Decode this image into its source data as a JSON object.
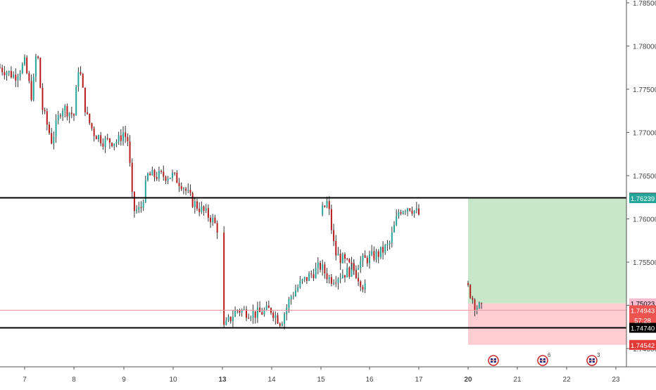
{
  "chart_data": {
    "type": "candlestick",
    "instrument": "",
    "y_axis": {
      "ticks": [
        "1.78500",
        "1.78000",
        "1.77500",
        "1.77000",
        "1.76500",
        "1.76000",
        "1.75500",
        "1.75000",
        "1.74500"
      ],
      "range": [
        1.7436,
        1.7862
      ]
    },
    "x_axis": {
      "ticks": [
        {
          "label": "7",
          "day": 7,
          "bold": false
        },
        {
          "label": "8",
          "day": 8,
          "bold": false
        },
        {
          "label": "9",
          "day": 9,
          "bold": false
        },
        {
          "label": "10",
          "day": 10,
          "bold": false
        },
        {
          "label": "13",
          "day": 13,
          "bold": true
        },
        {
          "label": "14",
          "day": 14,
          "bold": false
        },
        {
          "label": "15",
          "day": 15,
          "bold": false
        },
        {
          "label": "16",
          "day": 16,
          "bold": false
        },
        {
          "label": "17",
          "day": 17,
          "bold": false
        },
        {
          "label": "20",
          "day": 20,
          "bold": true
        },
        {
          "label": "21",
          "day": 21,
          "bold": false
        },
        {
          "label": "22",
          "day": 22,
          "bold": false
        },
        {
          "label": "23",
          "day": 23,
          "bold": false
        }
      ]
    },
    "price_path": [
      [
        6.5,
        1.7775
      ],
      [
        6.8,
        1.7765
      ],
      [
        7.0,
        1.778
      ],
      [
        7.15,
        1.774
      ],
      [
        7.25,
        1.78
      ],
      [
        7.35,
        1.773
      ],
      [
        7.55,
        1.769
      ],
      [
        7.75,
        1.773
      ],
      [
        8.0,
        1.772
      ],
      [
        8.1,
        1.778
      ],
      [
        8.25,
        1.772
      ],
      [
        8.4,
        1.77
      ],
      [
        8.6,
        1.769
      ],
      [
        8.9,
        1.769
      ],
      [
        9.0,
        1.77
      ],
      [
        9.1,
        1.769
      ],
      [
        9.2,
        1.761
      ],
      [
        9.35,
        1.761
      ],
      [
        9.5,
        1.765
      ],
      [
        9.8,
        1.765
      ],
      [
        10.0,
        1.765
      ],
      [
        10.2,
        1.764
      ],
      [
        10.4,
        1.762
      ],
      [
        10.6,
        1.761
      ],
      [
        10.8,
        1.76
      ],
      [
        11.0,
        1.758
      ],
      [
        11.2,
        1.756
      ],
      [
        11.4,
        1.753
      ],
      [
        11.6,
        1.75
      ],
      [
        11.8,
        1.748
      ],
      [
        12.0,
        1.747
      ],
      [
        13.0,
        1.747
      ],
      [
        13.3,
        1.7495
      ],
      [
        13.7,
        1.749
      ],
      [
        14.0,
        1.7495
      ],
      [
        14.2,
        1.748
      ],
      [
        14.4,
        1.751
      ],
      [
        14.6,
        1.7525
      ],
      [
        14.8,
        1.7535
      ],
      [
        15.0,
        1.7545
      ],
      [
        15.2,
        1.753
      ],
      [
        15.4,
        1.7535
      ],
      [
        15.6,
        1.754
      ],
      [
        15.8,
        1.755
      ],
      [
        16.0,
        1.7555
      ],
      [
        16.2,
        1.756
      ],
      [
        16.4,
        1.757
      ],
      [
        16.6,
        1.761
      ],
      [
        16.8,
        1.7615
      ],
      [
        17.0,
        1.7605
      ],
      [
        17.15,
        1.762
      ],
      [
        17.3,
        1.756
      ],
      [
        17.5,
        1.755
      ],
      [
        17.7,
        1.754
      ],
      [
        17.9,
        1.752
      ],
      [
        18.0,
        1.752
      ],
      [
        20.0,
        1.752
      ],
      [
        20.15,
        1.75
      ],
      [
        20.3,
        1.7495
      ]
    ],
    "horizontal_lines": [
      {
        "price": 1.76244,
        "color": "#000000"
      },
      {
        "price": 1.7474,
        "color": "#000000"
      },
      {
        "price": 1.74943,
        "color": "#ef9a9a",
        "thin": true
      }
    ],
    "position": {
      "type": "long",
      "entry": 1.75023,
      "target": 1.76239,
      "stop": 1.74542,
      "start_day": 20.0,
      "profit_color": "#c8e6c9",
      "loss_color": "#ffcdd2"
    },
    "price_labels": [
      {
        "text": "1.76244",
        "price": 1.76244,
        "bg": "#000000",
        "fg": "#ffffff"
      },
      {
        "text": "1.76239",
        "price": 1.76239,
        "bg": "#26a69a",
        "fg": "#ffffff"
      },
      {
        "text": "1.75023",
        "price": 1.75023,
        "bg": "#f8bbd0",
        "fg": "#000000"
      },
      {
        "text": "1.74943",
        "price": 1.74943,
        "bg": "#ef5350",
        "fg": "#ffffff"
      },
      {
        "text": "57:28",
        "price": 1.7483,
        "bg": "#ef5350",
        "fg": "#ffffff"
      },
      {
        "text": "1.74740",
        "price": 1.7474,
        "bg": "#000000",
        "fg": "#ffffff"
      },
      {
        "text": "1.74542",
        "price": 1.74542,
        "bg": "#e53935",
        "fg": "#ffffff"
      }
    ],
    "event_markers": [
      {
        "day": 20.2,
        "count": "",
        "icon": "uk-flag-icon"
      },
      {
        "day": 21.2,
        "count": "6",
        "icon": "uk-flag-icon"
      },
      {
        "day": 22.2,
        "count": "3",
        "icon": "uk-flag-icon"
      }
    ],
    "colors": {
      "up": "#26a69a",
      "down": "#b71c1c",
      "wick": "#333333",
      "axis_text": "#444444",
      "axis_line": "#555555"
    },
    "bars_per_day": 22
  }
}
